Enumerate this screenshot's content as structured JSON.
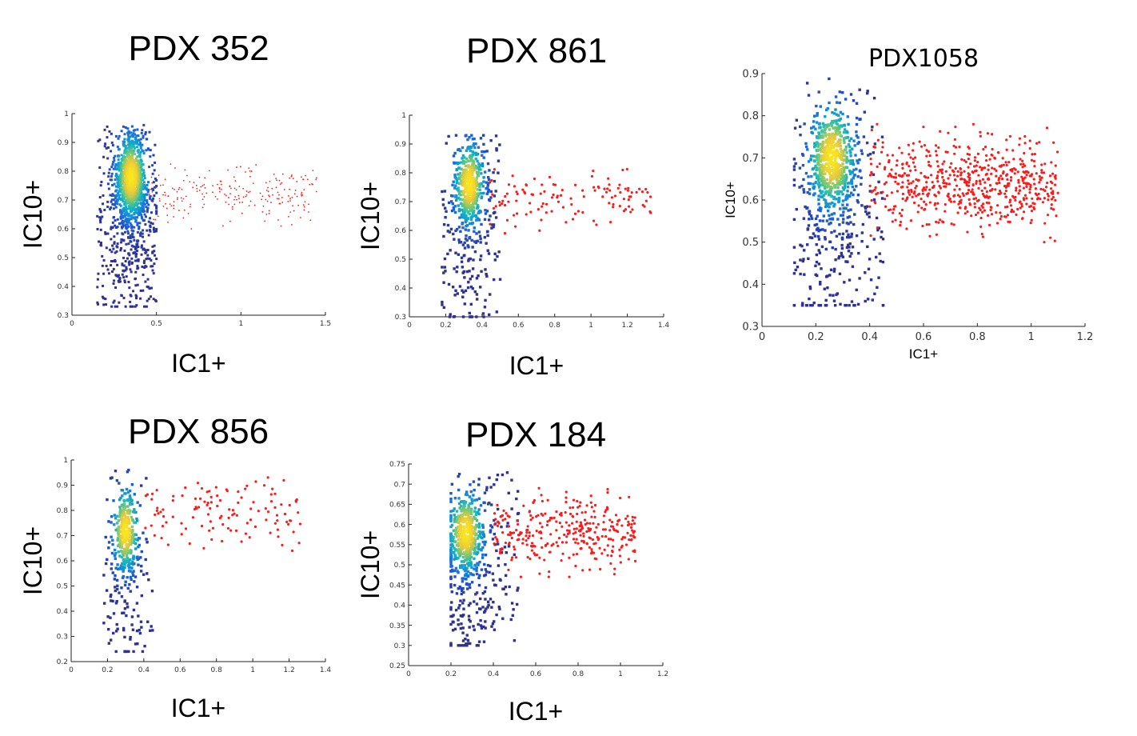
{
  "chart_data": [
    {
      "type": "scatter",
      "title": "PDX 352",
      "xlabel": "IC1+",
      "ylabel": "IC10+",
      "xlim": [
        0,
        1.5
      ],
      "ylim": [
        0.3,
        1.0
      ],
      "xticks": [
        "0",
        "0.5",
        "1",
        "1.5"
      ],
      "yticks": [
        "0.3",
        "0.4",
        "0.5",
        "0.6",
        "0.7",
        "0.8",
        "0.9",
        "1"
      ],
      "grid": false,
      "point_style": "small",
      "series": [
        {
          "color": "#2e3192",
          "density_core": {
            "x": 0.35,
            "y": 0.78
          },
          "x_range": [
            0.15,
            0.5
          ],
          "y_range": [
            0.33,
            0.96
          ]
        },
        {
          "color": "#ff1a1a",
          "x_range": [
            0.45,
            1.45
          ],
          "y_range": [
            0.6,
            0.85
          ]
        }
      ]
    },
    {
      "type": "scatter",
      "title": "PDX 861",
      "xlabel": "IC1+",
      "ylabel": "IC10+",
      "xlim": [
        0,
        1.4
      ],
      "ylim": [
        0.3,
        1.0
      ],
      "xticks": [
        "0",
        "0.2",
        "0.4",
        "0.6",
        "0.8",
        "1",
        "1.2",
        "1.4"
      ],
      "yticks": [
        "0.3",
        "0.4",
        "0.5",
        "0.6",
        "0.7",
        "0.8",
        "0.9",
        "1"
      ],
      "grid": false,
      "point_style": "medium",
      "series": [
        {
          "color": "#2e3192",
          "density_core": {
            "x": 0.33,
            "y": 0.76
          },
          "x_range": [
            0.18,
            0.5
          ],
          "y_range": [
            0.3,
            0.93
          ]
        },
        {
          "color": "#ff1a1a",
          "x_range": [
            0.42,
            1.33
          ],
          "y_range": [
            0.59,
            0.83
          ]
        }
      ]
    },
    {
      "type": "scatter",
      "title": "PDX1058",
      "xlabel": "IC1+",
      "ylabel": "IC10+",
      "xlim": [
        0,
        1.2
      ],
      "ylim": [
        0.3,
        0.9
      ],
      "xticks": [
        "0",
        "0.2",
        "0.4",
        "0.6",
        "0.8",
        "1",
        "1.2"
      ],
      "yticks": [
        "0.3",
        "0.4",
        "0.5",
        "0.6",
        "0.7",
        "0.8",
        "0.9"
      ],
      "grid": false,
      "point_style": "medium",
      "series": [
        {
          "color": "#2e3192",
          "density_core": {
            "x": 0.26,
            "y": 0.7
          },
          "x_range": [
            0.12,
            0.45
          ],
          "y_range": [
            0.35,
            0.89
          ]
        },
        {
          "color": "#ff1a1a",
          "x_range": [
            0.4,
            1.1
          ],
          "y_range": [
            0.5,
            0.78
          ]
        }
      ]
    },
    {
      "type": "scatter",
      "title": "PDX 856",
      "xlabel": "IC1+",
      "ylabel": "IC10+",
      "xlim": [
        0,
        1.4
      ],
      "ylim": [
        0.2,
        1.0
      ],
      "xticks": [
        "0",
        "0.2",
        "0.4",
        "0.6",
        "0.8",
        "1",
        "1.2",
        "1.4"
      ],
      "yticks": [
        "0.2",
        "0.3",
        "0.4",
        "0.5",
        "0.6",
        "0.7",
        "0.8",
        "0.9",
        "1"
      ],
      "grid": false,
      "point_style": "medium",
      "series": [
        {
          "color": "#2e3192",
          "density_core": {
            "x": 0.3,
            "y": 0.72
          },
          "x_range": [
            0.18,
            0.45
          ],
          "y_range": [
            0.24,
            0.96
          ]
        },
        {
          "color": "#ff1a1a",
          "x_range": [
            0.4,
            1.27
          ],
          "y_range": [
            0.64,
            0.95
          ]
        }
      ]
    },
    {
      "type": "scatter",
      "title": "PDX 184",
      "xlabel": "IC1+",
      "ylabel": "IC10+",
      "xlim": [
        0,
        1.2
      ],
      "ylim": [
        0.25,
        0.75
      ],
      "xticks": [
        "0",
        "0.2",
        "0.4",
        "0.6",
        "0.8",
        "1",
        "1.2"
      ],
      "yticks": [
        "0.25",
        "0.3",
        "0.35",
        "0.4",
        "0.45",
        "0.5",
        "0.55",
        "0.6",
        "0.65",
        "0.7",
        "0.75"
      ],
      "grid": false,
      "point_style": "medium",
      "series": [
        {
          "color": "#2e3192",
          "density_core": {
            "x": 0.27,
            "y": 0.58
          },
          "x_range": [
            0.2,
            0.52
          ],
          "y_range": [
            0.3,
            0.74
          ]
        },
        {
          "color": "#ff1a1a",
          "x_range": [
            0.4,
            1.07
          ],
          "y_range": [
            0.47,
            0.69
          ]
        }
      ]
    }
  ]
}
